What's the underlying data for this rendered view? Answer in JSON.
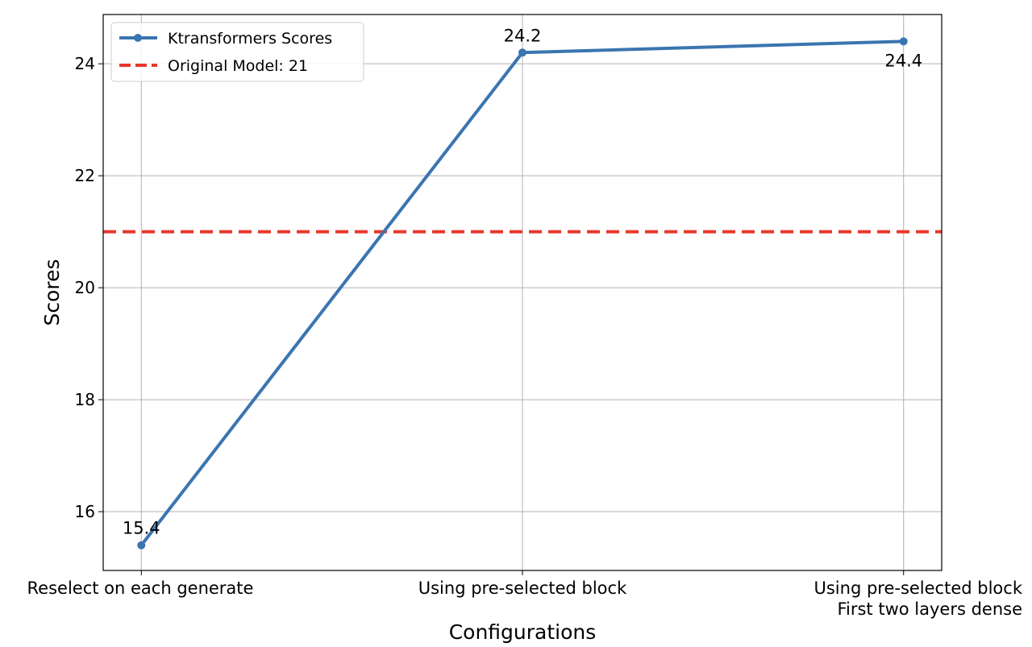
{
  "chart_data": {
    "type": "line",
    "title": "",
    "xlabel": "Configurations",
    "ylabel": "Scores",
    "categories": [
      "Reselect on each generate",
      "Using pre-selected block",
      "Using pre-selected block\nFirst two layers dense"
    ],
    "series": [
      {
        "name": "Ktransformers Scores",
        "values": [
          15.4,
          24.2,
          24.4
        ],
        "color": "#3a75b0",
        "data_labels": [
          "15.4",
          "24.2",
          "24.4"
        ]
      }
    ],
    "reference_lines": [
      {
        "name": "Original Model: 21",
        "y": 21,
        "color": "#e8372c",
        "style": "dashed"
      }
    ],
    "yticks": [
      16,
      18,
      20,
      22,
      24
    ],
    "ylim": [
      14.95,
      24.88
    ],
    "grid": true,
    "legend": "top-left"
  }
}
